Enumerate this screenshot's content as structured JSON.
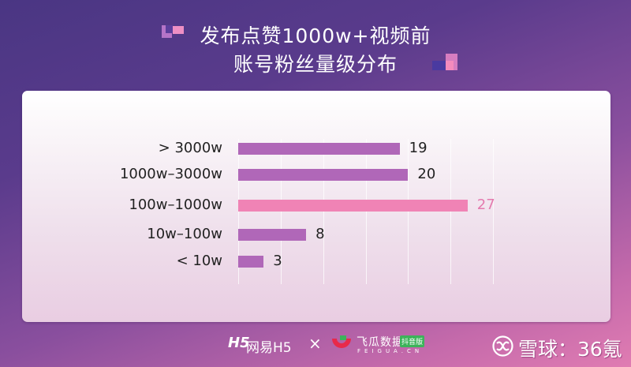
{
  "title": {
    "line1": "发布点赞1000w+视频前",
    "line2": "账号粉丝量级分布"
  },
  "chart_data": {
    "type": "bar",
    "orientation": "horizontal",
    "title": "发布点赞1000w+视频前账号粉丝量级分布",
    "categories": [
      "> 3000w",
      "1000w–3000w",
      "100w–1000w",
      "10w–100w",
      "< 10w"
    ],
    "values": [
      19,
      20,
      27,
      8,
      3
    ],
    "xlabel": "",
    "ylabel": "",
    "xlim": [
      0,
      30
    ],
    "grid": true,
    "highlight_index": 2,
    "colors": {
      "bar": "#b067b8",
      "highlight": "#f083b5",
      "value_text": "#222222",
      "highlight_text": "#e47aae"
    }
  },
  "footer": {
    "brand1_mark": "H5",
    "brand1_name": "网易H5",
    "separator": "×",
    "brand2_name": "飞瓜数据",
    "brand2_badge": "抖音版",
    "brand2_sub": "FEIGUA.CN",
    "watermark": "雪球：36氪"
  }
}
